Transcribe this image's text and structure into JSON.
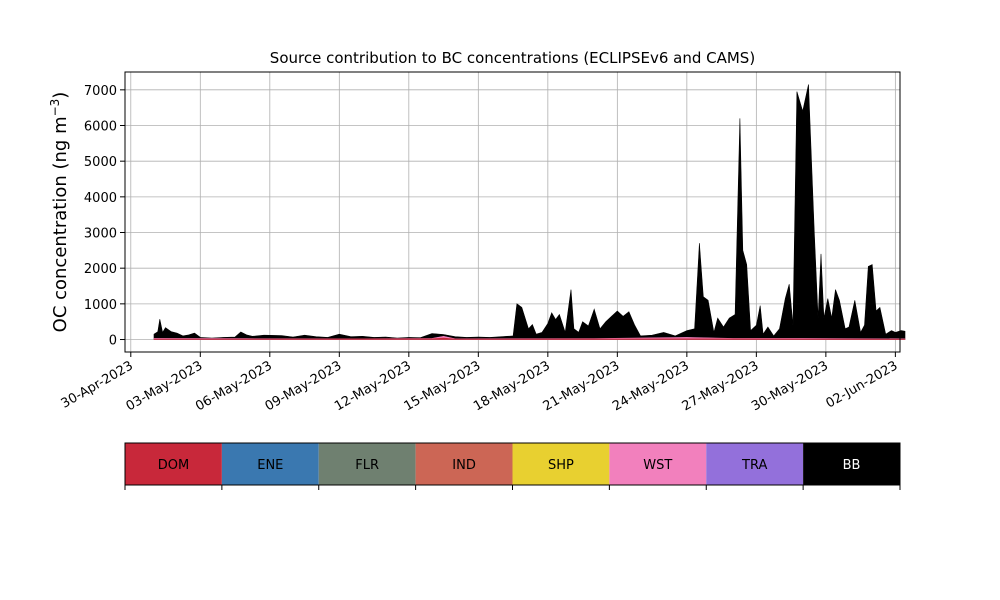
{
  "chart_data": {
    "type": "area",
    "title": "Source contribution to BC concentrations (ECLIPSEv6 and CAMS)",
    "ylabel": "OC concentration (ng m",
    "ylabel_superscript": "−3",
    "ylabel_close": ")",
    "xlim": [
      "2023-04-30",
      "2023-06-02"
    ],
    "ylim": [
      -350,
      7500
    ],
    "grid": true,
    "x_ticks": [
      {
        "date": "2023-04-30",
        "label": "30-Apr-2023"
      },
      {
        "date": "2023-05-03",
        "label": "03-May-2023"
      },
      {
        "date": "2023-05-06",
        "label": "06-May-2023"
      },
      {
        "date": "2023-05-09",
        "label": "09-May-2023"
      },
      {
        "date": "2023-05-12",
        "label": "12-May-2023"
      },
      {
        "date": "2023-05-15",
        "label": "15-May-2023"
      },
      {
        "date": "2023-05-18",
        "label": "18-May-2023"
      },
      {
        "date": "2023-05-21",
        "label": "21-May-2023"
      },
      {
        "date": "2023-05-24",
        "label": "24-May-2023"
      },
      {
        "date": "2023-05-27",
        "label": "27-May-2023"
      },
      {
        "date": "2023-05-30",
        "label": "30-May-2023"
      },
      {
        "date": "2023-06-02",
        "label": "02-Jun-2023"
      }
    ],
    "y_ticks": [
      0,
      1000,
      2000,
      3000,
      4000,
      5000,
      6000,
      7000
    ],
    "legend": {
      "placement": "below",
      "entries": [
        {
          "name": "DOM",
          "color": "#c8283a",
          "text_color": "#000000"
        },
        {
          "name": "ENE",
          "color": "#3a78b0",
          "text_color": "#000000"
        },
        {
          "name": "FLR",
          "color": "#6f8070",
          "text_color": "#000000"
        },
        {
          "name": "IND",
          "color": "#cc6655",
          "text_color": "#000000"
        },
        {
          "name": "SHP",
          "color": "#e8d030",
          "text_color": "#000000"
        },
        {
          "name": "WST",
          "color": "#f280bd",
          "text_color": "#000000"
        },
        {
          "name": "TRA",
          "color": "#9370db",
          "text_color": "#000000"
        },
        {
          "name": "BB",
          "color": "#000000",
          "text_color": "#ffffff"
        }
      ]
    },
    "series": [
      {
        "name": "BB",
        "color": "#000000",
        "points": [
          [
            "2023-05-01T00:00",
            150
          ],
          [
            "2023-05-01T04:00",
            220
          ],
          [
            "2023-05-01T06:00",
            570
          ],
          [
            "2023-05-01T09:00",
            200
          ],
          [
            "2023-05-01T12:00",
            330
          ],
          [
            "2023-05-01T18:00",
            220
          ],
          [
            "2023-05-02T00:00",
            180
          ],
          [
            "2023-05-02T06:00",
            100
          ],
          [
            "2023-05-02T12:00",
            130
          ],
          [
            "2023-05-02T18:00",
            180
          ],
          [
            "2023-05-03T00:00",
            60
          ],
          [
            "2023-05-03T12:00",
            40
          ],
          [
            "2023-05-04T00:00",
            60
          ],
          [
            "2023-05-04T12:00",
            70
          ],
          [
            "2023-05-04T18:00",
            210
          ],
          [
            "2023-05-05T00:00",
            130
          ],
          [
            "2023-05-05T06:00",
            90
          ],
          [
            "2023-05-05T18:00",
            120
          ],
          [
            "2023-05-06T12:00",
            110
          ],
          [
            "2023-05-07T00:00",
            70
          ],
          [
            "2023-05-07T12:00",
            120
          ],
          [
            "2023-05-08T00:00",
            80
          ],
          [
            "2023-05-08T12:00",
            60
          ],
          [
            "2023-05-09T00:00",
            150
          ],
          [
            "2023-05-09T12:00",
            80
          ],
          [
            "2023-05-10T00:00",
            90
          ],
          [
            "2023-05-10T12:00",
            60
          ],
          [
            "2023-05-11T00:00",
            70
          ],
          [
            "2023-05-11T12:00",
            40
          ],
          [
            "2023-05-12T00:00",
            60
          ],
          [
            "2023-05-12T12:00",
            50
          ],
          [
            "2023-05-13T00:00",
            170
          ],
          [
            "2023-05-13T12:00",
            140
          ],
          [
            "2023-05-14T00:00",
            80
          ],
          [
            "2023-05-14T12:00",
            60
          ],
          [
            "2023-05-15T00:00",
            70
          ],
          [
            "2023-05-15T12:00",
            60
          ],
          [
            "2023-05-16T00:00",
            80
          ],
          [
            "2023-05-16T12:00",
            100
          ],
          [
            "2023-05-16T16:00",
            1000
          ],
          [
            "2023-05-16T21:00",
            900
          ],
          [
            "2023-05-17T04:00",
            300
          ],
          [
            "2023-05-17T08:00",
            420
          ],
          [
            "2023-05-17T12:00",
            150
          ],
          [
            "2023-05-17T18:00",
            200
          ],
          [
            "2023-05-18T00:00",
            450
          ],
          [
            "2023-05-18T04:00",
            750
          ],
          [
            "2023-05-18T08:00",
            560
          ],
          [
            "2023-05-18T12:00",
            700
          ],
          [
            "2023-05-18T18:00",
            200
          ],
          [
            "2023-05-19T00:00",
            1400
          ],
          [
            "2023-05-19T03:00",
            300
          ],
          [
            "2023-05-19T08:00",
            200
          ],
          [
            "2023-05-19T12:00",
            500
          ],
          [
            "2023-05-19T18:00",
            380
          ],
          [
            "2023-05-20T00:00",
            850
          ],
          [
            "2023-05-20T06:00",
            300
          ],
          [
            "2023-05-20T12:00",
            500
          ],
          [
            "2023-05-20T18:00",
            650
          ],
          [
            "2023-05-21T00:00",
            800
          ],
          [
            "2023-05-21T06:00",
            650
          ],
          [
            "2023-05-21T12:00",
            780
          ],
          [
            "2023-05-21T18:00",
            400
          ],
          [
            "2023-05-22T00:00",
            100
          ],
          [
            "2023-05-22T12:00",
            120
          ],
          [
            "2023-05-23T00:00",
            200
          ],
          [
            "2023-05-23T12:00",
            100
          ],
          [
            "2023-05-24T00:00",
            250
          ],
          [
            "2023-05-24T08:00",
            300
          ],
          [
            "2023-05-24T13:00",
            2700
          ],
          [
            "2023-05-24T17:00",
            1200
          ],
          [
            "2023-05-24T22:00",
            1100
          ],
          [
            "2023-05-25T04:00",
            200
          ],
          [
            "2023-05-25T08:00",
            600
          ],
          [
            "2023-05-25T14:00",
            350
          ],
          [
            "2023-05-25T20:00",
            600
          ],
          [
            "2023-05-26T02:00",
            700
          ],
          [
            "2023-05-26T07:00",
            6200
          ],
          [
            "2023-05-26T10:00",
            2500
          ],
          [
            "2023-05-26T14:00",
            2100
          ],
          [
            "2023-05-26T18:00",
            250
          ],
          [
            "2023-05-27T00:00",
            400
          ],
          [
            "2023-05-27T04:00",
            950
          ],
          [
            "2023-05-27T07:00",
            150
          ],
          [
            "2023-05-27T12:00",
            350
          ],
          [
            "2023-05-27T18:00",
            100
          ],
          [
            "2023-05-28T00:00",
            300
          ],
          [
            "2023-05-28T06:00",
            1150
          ],
          [
            "2023-05-28T10:00",
            1550
          ],
          [
            "2023-05-28T14:00",
            400
          ],
          [
            "2023-05-28T18:00",
            6950
          ],
          [
            "2023-05-29T00:00",
            6400
          ],
          [
            "2023-05-29T06:00",
            7150
          ],
          [
            "2023-05-29T12:00",
            3000
          ],
          [
            "2023-05-29T16:00",
            600
          ],
          [
            "2023-05-29T19:00",
            2400
          ],
          [
            "2023-05-29T22:00",
            600
          ],
          [
            "2023-05-30T02:00",
            1150
          ],
          [
            "2023-05-30T06:00",
            600
          ],
          [
            "2023-05-30T10:00",
            1400
          ],
          [
            "2023-05-30T14:00",
            1100
          ],
          [
            "2023-05-30T20:00",
            300
          ],
          [
            "2023-05-31T00:00",
            350
          ],
          [
            "2023-05-31T06:00",
            1100
          ],
          [
            "2023-05-31T12:00",
            200
          ],
          [
            "2023-05-31T16:00",
            400
          ],
          [
            "2023-05-31T20:00",
            2050
          ],
          [
            "2023-06-01T00:00",
            2100
          ],
          [
            "2023-06-01T04:00",
            800
          ],
          [
            "2023-06-01T08:00",
            900
          ],
          [
            "2023-06-01T14:00",
            150
          ],
          [
            "2023-06-01T20:00",
            250
          ],
          [
            "2023-06-02T00:00",
            200
          ],
          [
            "2023-06-02T06:00",
            250
          ],
          [
            "2023-06-02T10:00",
            230
          ]
        ]
      },
      {
        "name": "WST",
        "color": "#f280bd",
        "points": [
          [
            "2023-05-01T00:00",
            30
          ],
          [
            "2023-05-05T00:00",
            25
          ],
          [
            "2023-05-10T00:00",
            20
          ],
          [
            "2023-05-13T00:00",
            30
          ],
          [
            "2023-05-13T12:00",
            90
          ],
          [
            "2023-05-14T00:00",
            20
          ],
          [
            "2023-05-20T00:00",
            25
          ],
          [
            "2023-05-24T00:00",
            60
          ],
          [
            "2023-05-26T00:00",
            30
          ],
          [
            "2023-05-29T00:00",
            30
          ],
          [
            "2023-06-02T10:00",
            20
          ]
        ]
      },
      {
        "name": "DOM",
        "color": "#c8283a",
        "points": [
          [
            "2023-05-01T00:00",
            15
          ],
          [
            "2023-05-05T00:00",
            12
          ],
          [
            "2023-05-13T00:00",
            20
          ],
          [
            "2023-05-13T12:00",
            40
          ],
          [
            "2023-05-14T00:00",
            12
          ],
          [
            "2023-05-24T00:00",
            20
          ],
          [
            "2023-06-02T10:00",
            10
          ]
        ]
      }
    ]
  }
}
